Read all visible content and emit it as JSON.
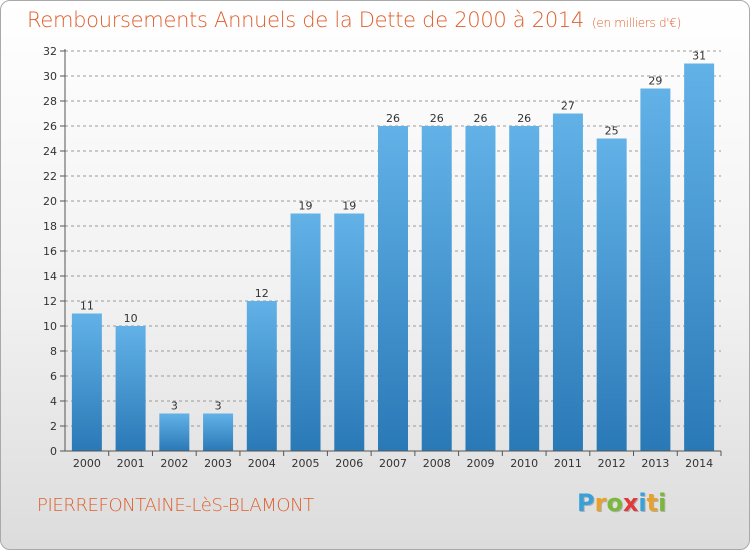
{
  "title": "Remboursements Annuels de la Dette de 2000 à 2014",
  "subtitle": "(en milliers d'€)",
  "commune": "PIERREFONTAINE-LèS-BLAMONT",
  "logo": {
    "letters": [
      "P",
      "r",
      "o",
      "x",
      "i",
      "t",
      "i"
    ],
    "colors": [
      "#3aa0d8",
      "#e8a12a",
      "#7ab83a",
      "#e03a3a",
      "#3aa0d8",
      "#e8a12a",
      "#7ab83a"
    ]
  },
  "colors": {
    "accent": "#df5e2c",
    "bar_light": "#62b2e8",
    "bar_dark": "#2a79b7",
    "grid": "#9a9a9a"
  },
  "chart_data": {
    "type": "bar",
    "categories": [
      "2000",
      "2001",
      "2002",
      "2003",
      "2004",
      "2005",
      "2006",
      "2007",
      "2008",
      "2009",
      "2010",
      "2011",
      "2012",
      "2013",
      "2014"
    ],
    "values": [
      11,
      10,
      3,
      3,
      12,
      19,
      19,
      26,
      26,
      26,
      26,
      27,
      25,
      29,
      31
    ],
    "ylim": [
      0,
      32
    ],
    "yticks": [
      0,
      2,
      4,
      6,
      8,
      10,
      12,
      14,
      16,
      18,
      20,
      22,
      24,
      26,
      28,
      30,
      32
    ],
    "grid": true,
    "data_labels": true
  }
}
